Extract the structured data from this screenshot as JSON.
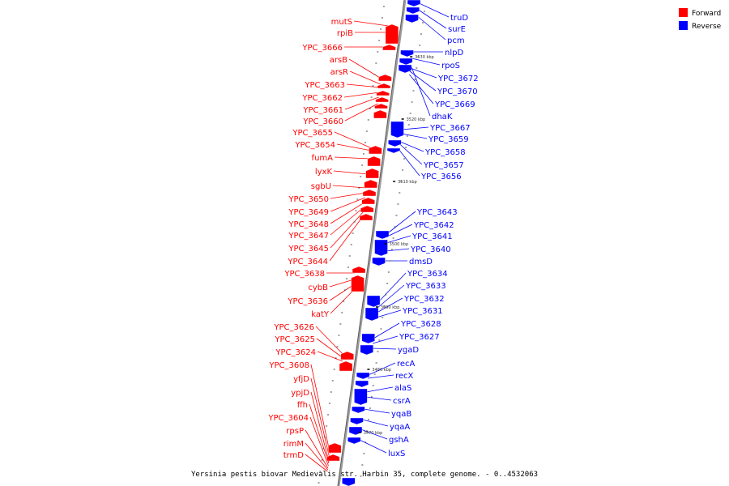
{
  "colors": {
    "forward": "#ff0000",
    "reverse": "#0000ff",
    "backbone": "#888888"
  },
  "legend": [
    {
      "label": "Forward",
      "strand": "forward"
    },
    {
      "label": "Reverse",
      "strand": "reverse"
    }
  ],
  "caption": "Yersinia pestis biovar Medievalis str. Harbin 35, complete genome. - 0..4532063",
  "ticks": [
    "3530 kbp",
    "3520 kbp",
    "3510 kbp",
    "3500 kbp",
    "3490 kbp",
    "3480 kbp",
    "3470 kbp"
  ],
  "forward_genes": [
    "mutS",
    "rpiB",
    "YPC_3666",
    "arsB",
    "arsR",
    "YPC_3663",
    "YPC_3662",
    "YPC_3661",
    "YPC_3660",
    "YPC_3655",
    "YPC_3654",
    "fumA",
    "lyxK",
    "sgbU",
    "YPC_3650",
    "YPC_3649",
    "YPC_3648",
    "YPC_3647",
    "YPC_3645",
    "YPC_3644",
    "YPC_3638",
    "cybB",
    "YPC_3636",
    "katY",
    "YPC_3626",
    "YPC_3625",
    "YPC_3624",
    "YPC_3608",
    "yfjD",
    "ypjD",
    "ffh",
    "YPC_3604",
    "rpsP",
    "rimM",
    "trmD"
  ],
  "reverse_genes": [
    "truD",
    "surE",
    "pcm",
    "nlpD",
    "rpoS",
    "YPC_3672",
    "YPC_3670",
    "YPC_3669",
    "dhaK",
    "YPC_3667",
    "YPC_3659",
    "YPC_3658",
    "YPC_3657",
    "YPC_3656",
    "YPC_3643",
    "YPC_3642",
    "YPC_3641",
    "YPC_3640",
    "dmsD",
    "YPC_3634",
    "YPC_3633",
    "YPC_3632",
    "YPC_3631",
    "YPC_3628",
    "YPC_3627",
    "ygaD",
    "recA",
    "recX",
    "alaS",
    "csrA",
    "yqaB",
    "yqaA",
    "gshA",
    "luxS"
  ]
}
